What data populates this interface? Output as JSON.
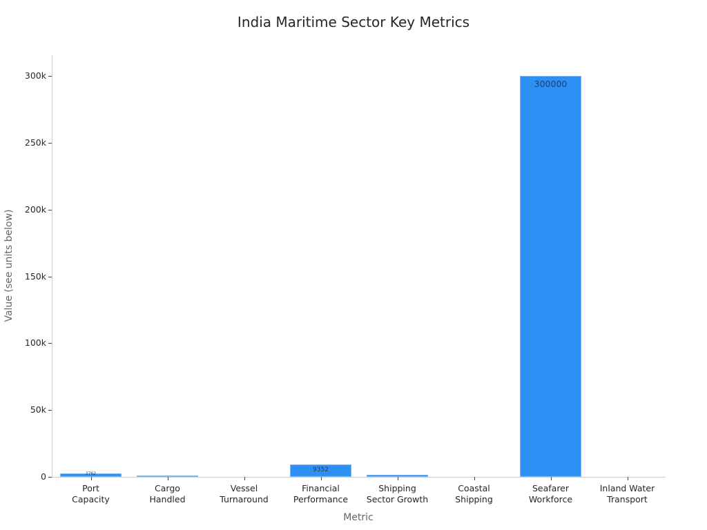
{
  "chart_data": {
    "type": "bar",
    "title": "India Maritime Sector Key Metrics",
    "xlabel": "Metric",
    "ylabel": "Value (see units below)",
    "categories": [
      "Port Capacity",
      "Cargo Handled",
      "Vessel Turnaround",
      "Financial Performance",
      "Shipping Sector Growth",
      "Coastal Shipping",
      "Seafarer Workforce",
      "Inland Water Transport"
    ],
    "category_lines": [
      [
        "Port",
        "Capacity"
      ],
      [
        "Cargo",
        "Handled"
      ],
      [
        "Vessel",
        "Turnaround"
      ],
      [
        "Financial",
        "Performance"
      ],
      [
        "Shipping",
        "Sector Growth"
      ],
      [
        "Coastal",
        "Shipping"
      ],
      [
        "Seafarer",
        "Workforce"
      ],
      [
        "Inland Water",
        "Transport"
      ]
    ],
    "values": [
      2762,
      1000,
      0,
      9352,
      1500,
      0,
      300000,
      0
    ],
    "data_labels": [
      "2762",
      "",
      "",
      "9352",
      "",
      "",
      "300000",
      ""
    ],
    "ylim": [
      0,
      315000
    ],
    "yticks": [
      0,
      50000,
      100000,
      150000,
      200000,
      250000,
      300000
    ],
    "ytick_labels": [
      "0",
      "50k",
      "100k",
      "150k",
      "200k",
      "250k",
      "300k"
    ],
    "grid": false,
    "legend": null,
    "bar_color": "#2e90f5"
  }
}
